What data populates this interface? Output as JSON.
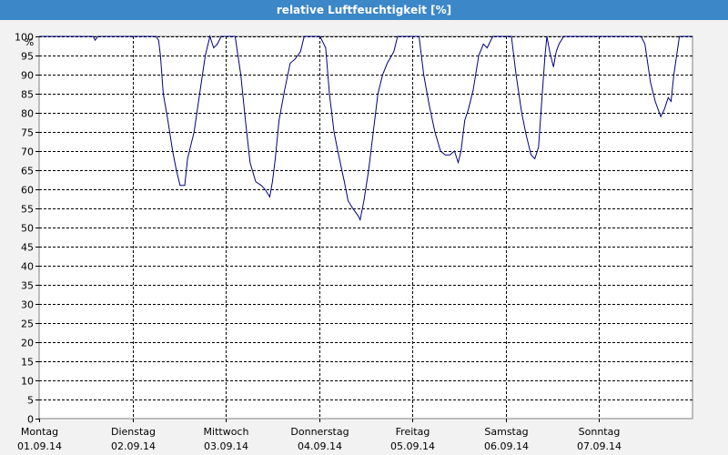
{
  "title": "relative Luftfeuchtigkeit [%]",
  "chart_data": {
    "type": "line",
    "title": "relative Luftfeuchtigkeit [%]",
    "y_unit_label": "%",
    "ylim": [
      0,
      100
    ],
    "y_ticks": [
      0,
      5,
      10,
      15,
      20,
      25,
      30,
      35,
      40,
      45,
      50,
      55,
      60,
      65,
      70,
      75,
      80,
      85,
      90,
      95,
      100
    ],
    "xlim": [
      0,
      7
    ],
    "x_unit": "days since 01.09.14 00:00",
    "x_ticks": [
      {
        "pos": 0,
        "day": "Montag",
        "date": "01.09.14"
      },
      {
        "pos": 1,
        "day": "Dienstag",
        "date": "02.09.14"
      },
      {
        "pos": 2,
        "day": "Mittwoch",
        "date": "03.09.14"
      },
      {
        "pos": 3,
        "day": "Donnerstag",
        "date": "04.09.14"
      },
      {
        "pos": 4,
        "day": "Freitag",
        "date": "05.09.14"
      },
      {
        "pos": 5,
        "day": "Samstag",
        "date": "06.09.14"
      },
      {
        "pos": 6,
        "day": "Sonntag",
        "date": "07.09.14"
      }
    ],
    "grid": true,
    "series": [
      {
        "name": "",
        "color": "#000080",
        "points": [
          [
            0,
            100
          ],
          [
            0.58,
            100
          ],
          [
            0.6,
            99
          ],
          [
            0.63,
            100
          ],
          [
            1.25,
            100
          ],
          [
            1.28,
            99
          ],
          [
            1.3,
            95
          ],
          [
            1.33,
            85
          ],
          [
            1.38,
            78
          ],
          [
            1.43,
            70
          ],
          [
            1.47,
            65
          ],
          [
            1.51,
            61
          ],
          [
            1.56,
            61
          ],
          [
            1.59,
            68
          ],
          [
            1.66,
            75
          ],
          [
            1.72,
            85
          ],
          [
            1.78,
            95
          ],
          [
            1.83,
            100
          ],
          [
            1.87,
            97
          ],
          [
            1.91,
            98
          ],
          [
            1.95,
            100
          ],
          [
            2.03,
            100
          ],
          [
            2.1,
            100
          ],
          [
            2.16,
            90
          ],
          [
            2.21,
            78
          ],
          [
            2.26,
            67
          ],
          [
            2.32,
            62
          ],
          [
            2.38,
            61
          ],
          [
            2.42,
            60
          ],
          [
            2.47,
            58
          ],
          [
            2.5,
            62
          ],
          [
            2.53,
            68
          ],
          [
            2.57,
            78
          ],
          [
            2.63,
            86
          ],
          [
            2.69,
            93
          ],
          [
            2.74,
            94
          ],
          [
            2.8,
            96
          ],
          [
            2.84,
            100
          ],
          [
            3.01,
            100
          ],
          [
            3.07,
            97
          ],
          [
            3.11,
            85
          ],
          [
            3.16,
            75
          ],
          [
            3.2,
            70
          ],
          [
            3.27,
            62
          ],
          [
            3.31,
            57
          ],
          [
            3.36,
            55
          ],
          [
            3.42,
            53
          ],
          [
            3.44,
            52
          ],
          [
            3.48,
            57
          ],
          [
            3.53,
            65
          ],
          [
            3.58,
            75
          ],
          [
            3.63,
            85
          ],
          [
            3.68,
            90
          ],
          [
            3.73,
            93
          ],
          [
            3.8,
            96
          ],
          [
            3.84,
            100
          ],
          [
            4.07,
            100
          ],
          [
            4.12,
            90
          ],
          [
            4.18,
            82
          ],
          [
            4.24,
            75
          ],
          [
            4.3,
            70
          ],
          [
            4.35,
            69
          ],
          [
            4.4,
            69
          ],
          [
            4.45,
            70
          ],
          [
            4.49,
            67
          ],
          [
            4.52,
            70
          ],
          [
            4.56,
            78
          ],
          [
            4.6,
            81
          ],
          [
            4.65,
            86
          ],
          [
            4.71,
            95
          ],
          [
            4.76,
            98
          ],
          [
            4.8,
            97
          ],
          [
            4.86,
            100
          ],
          [
            5.06,
            100
          ],
          [
            5.11,
            90
          ],
          [
            5.17,
            80
          ],
          [
            5.22,
            74
          ],
          [
            5.27,
            69
          ],
          [
            5.31,
            68
          ],
          [
            5.35,
            71
          ],
          [
            5.39,
            85
          ],
          [
            5.42,
            95
          ],
          [
            5.44,
            100
          ],
          [
            5.47,
            96
          ],
          [
            5.51,
            92
          ],
          [
            5.54,
            96
          ],
          [
            5.57,
            98
          ],
          [
            5.62,
            100
          ],
          [
            6.45,
            100
          ],
          [
            6.49,
            98
          ],
          [
            6.55,
            88
          ],
          [
            6.6,
            83
          ],
          [
            6.66,
            79
          ],
          [
            6.7,
            81
          ],
          [
            6.74,
            84
          ],
          [
            6.77,
            83
          ],
          [
            6.8,
            90
          ],
          [
            6.86,
            100
          ],
          [
            7,
            100
          ]
        ]
      }
    ]
  }
}
